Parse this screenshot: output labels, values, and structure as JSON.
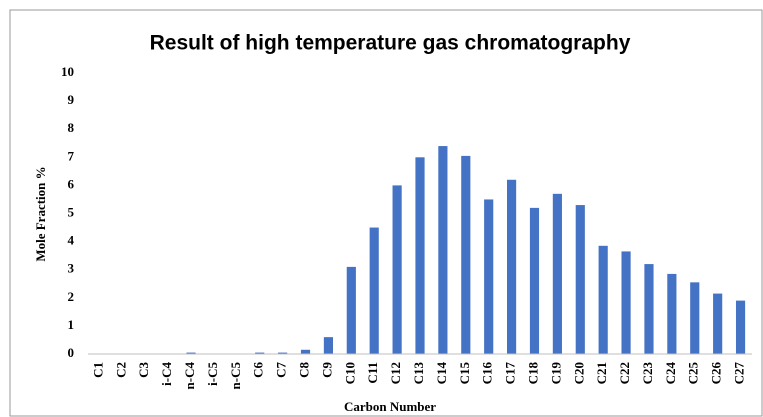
{
  "chart_data": {
    "type": "bar",
    "title": "Result of high temperature gas chromatography",
    "x_label": "Carbon Number",
    "y_label": "Mole Fraction %",
    "categories": [
      "C1",
      "C2",
      "C3",
      "i-C4",
      "n-C4",
      "i-C5",
      "n-C5",
      "C6",
      "C7",
      "C8",
      "C9",
      "C10",
      "C11",
      "C12",
      "C13",
      "C14",
      "C15",
      "C16",
      "C17",
      "C18",
      "C19",
      "C20",
      "C21",
      "C22",
      "C23",
      "C24",
      "C25",
      "C26",
      "C27"
    ],
    "values": [
      0,
      0,
      0,
      0,
      0.05,
      0,
      0,
      0.05,
      0.05,
      0.15,
      0.6,
      3.1,
      4.5,
      6.0,
      7.0,
      7.4,
      7.05,
      5.5,
      6.2,
      5.2,
      5.7,
      5.3,
      3.85,
      3.65,
      3.2,
      2.85,
      2.55,
      2.15,
      1.9
    ],
    "color": "#4472c4",
    "ylim": [
      0,
      10
    ],
    "yticks": [
      0,
      1,
      2,
      3,
      4,
      5,
      6,
      7,
      8,
      9,
      10
    ],
    "grid": false
  }
}
